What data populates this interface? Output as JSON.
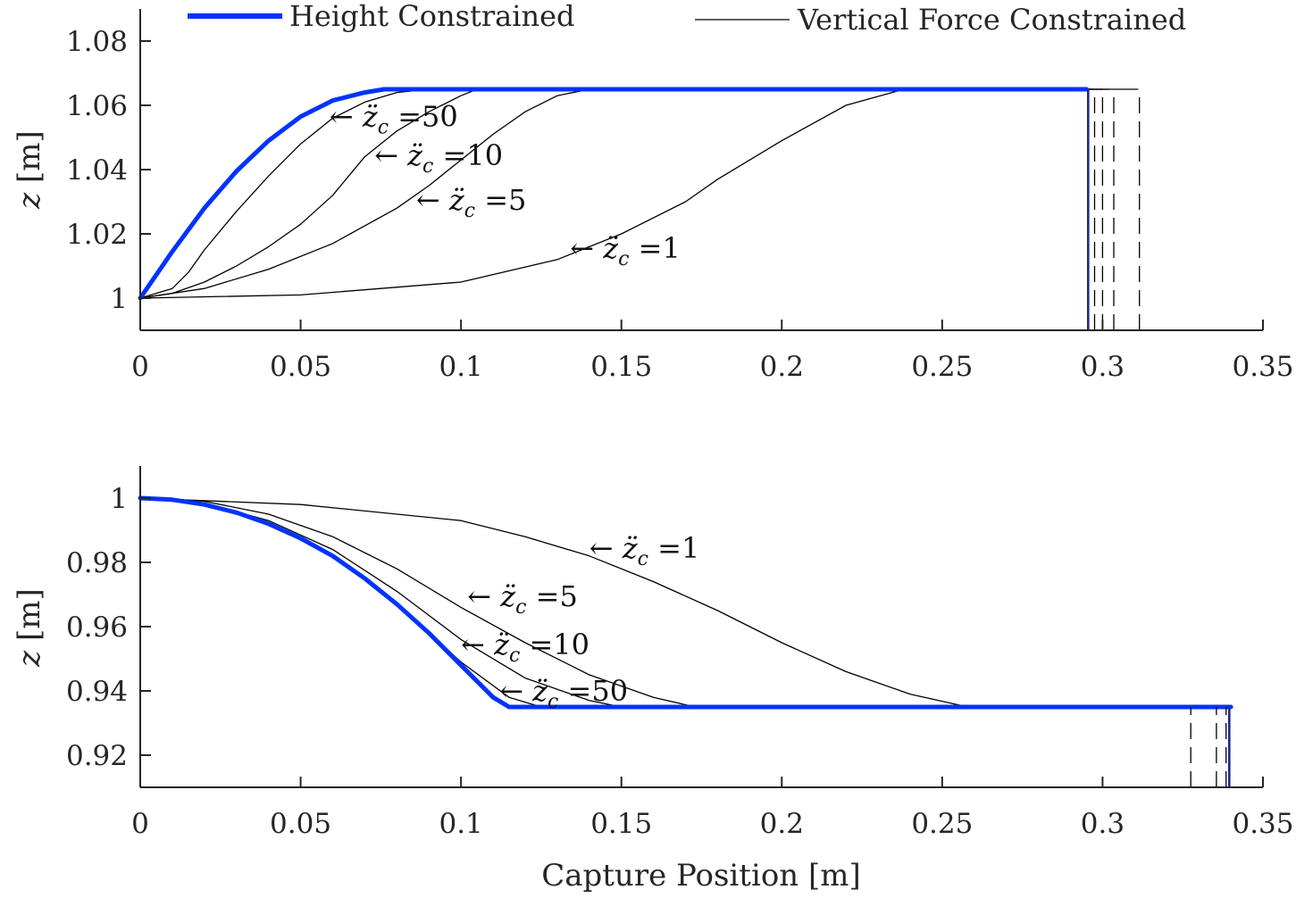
{
  "legend": {
    "height_label": "Height Constrained",
    "force_label": "Vertical Force Constrained",
    "placement": "top",
    "height_color": "#0033ff",
    "force_color": "#000000"
  },
  "chart_data": [
    {
      "type": "line",
      "panel": "top",
      "xlabel": "",
      "ylabel_var": "z",
      "ylabel_unit": "[m]",
      "xlim": [
        0,
        0.35
      ],
      "ylim": [
        0.99,
        1.09
      ],
      "xticks": [
        0,
        0.05,
        0.1,
        0.15,
        0.2,
        0.25,
        0.3,
        0.35
      ],
      "xtick_labels": [
        "0",
        "0.05",
        "0.1",
        "0.15",
        "0.2",
        "0.25",
        "0.3",
        "0.35"
      ],
      "yticks": [
        1.0,
        1.02,
        1.04,
        1.06,
        1.08
      ],
      "ytick_labels": [
        "1",
        "1.02",
        "1.04",
        "1.06",
        "1.08"
      ],
      "grid": false,
      "series": [
        {
          "kind": "height",
          "color": "#0033ff",
          "x": [
            0,
            0.01,
            0.02,
            0.03,
            0.04,
            0.05,
            0.06,
            0.07,
            0.076,
            0.1,
            0.15,
            0.2,
            0.25,
            0.295
          ],
          "y": [
            1.0,
            1.0145,
            1.028,
            1.0395,
            1.049,
            1.0565,
            1.0615,
            1.064,
            1.065,
            1.065,
            1.065,
            1.065,
            1.065,
            1.065
          ]
        },
        {
          "kind": "force",
          "color": "#000000",
          "x": [
            0,
            0.01,
            0.015,
            0.02,
            0.03,
            0.04,
            0.05,
            0.06,
            0.07,
            0.08,
            0.09,
            0.1,
            0.11,
            0.2,
            0.25,
            0.297
          ],
          "y": [
            1.0,
            1.003,
            1.008,
            1.015,
            1.027,
            1.038,
            1.048,
            1.056,
            1.061,
            1.064,
            1.065,
            1.065,
            1.065,
            1.065,
            1.065,
            1.065
          ]
        },
        {
          "kind": "force",
          "color": "#000000",
          "x": [
            0,
            0.01,
            0.02,
            0.03,
            0.04,
            0.05,
            0.06,
            0.065,
            0.07,
            0.08,
            0.09,
            0.1,
            0.105,
            0.15,
            0.2,
            0.25,
            0.3
          ],
          "y": [
            1.0,
            1.0015,
            1.005,
            1.01,
            1.016,
            1.023,
            1.032,
            1.038,
            1.044,
            1.052,
            1.058,
            1.063,
            1.065,
            1.065,
            1.065,
            1.065,
            1.065
          ]
        },
        {
          "kind": "force",
          "color": "#000000",
          "x": [
            0,
            0.02,
            0.04,
            0.06,
            0.08,
            0.09,
            0.1,
            0.11,
            0.12,
            0.13,
            0.14,
            0.2,
            0.25,
            0.302
          ],
          "y": [
            1.0,
            1.003,
            1.009,
            1.017,
            1.028,
            1.035,
            1.043,
            1.051,
            1.058,
            1.063,
            1.065,
            1.065,
            1.065,
            1.065
          ]
        },
        {
          "kind": "force",
          "color": "#000000",
          "x": [
            0,
            0.05,
            0.1,
            0.13,
            0.15,
            0.17,
            0.18,
            0.2,
            0.22,
            0.238,
            0.26,
            0.311
          ],
          "y": [
            1.0,
            1.001,
            1.005,
            1.012,
            1.02,
            1.03,
            1.037,
            1.049,
            1.06,
            1.065,
            1.065,
            1.065
          ]
        }
      ],
      "vlines": [
        {
          "kind": "height",
          "x": 0.2955,
          "style": "solid",
          "y_from": 0.99,
          "y_to": 1.065
        },
        {
          "kind": "force",
          "x": 0.2975,
          "style": "dashed",
          "y_from": 0.99,
          "y_to": 1.065
        },
        {
          "kind": "force",
          "x": 0.3,
          "style": "dashed",
          "y_from": 0.99,
          "y_to": 1.065
        },
        {
          "kind": "force",
          "x": 0.3035,
          "style": "dashed",
          "y_from": 0.99,
          "y_to": 1.065
        },
        {
          "kind": "force",
          "x": 0.3115,
          "style": "dashed",
          "y_from": 0.99,
          "y_to": 1.065
        }
      ],
      "annotations": [
        {
          "x": 0.059,
          "y": 1.0565,
          "prefix": "← ",
          "var": "z̈",
          "sub": "c",
          "value": " =50"
        },
        {
          "x": 0.073,
          "y": 1.0445,
          "prefix": "← ",
          "var": "z̈",
          "sub": "c",
          "value": " =10"
        },
        {
          "x": 0.086,
          "y": 1.0305,
          "prefix": "← ",
          "var": "z̈",
          "sub": "c",
          "value": " =5"
        },
        {
          "x": 0.134,
          "y": 1.0155,
          "prefix": "← ",
          "var": "z̈",
          "sub": "c",
          "value": " =1"
        }
      ]
    },
    {
      "type": "line",
      "panel": "bottom",
      "xlabel": "Capture Position [m]",
      "ylabel_var": "z",
      "ylabel_unit": "[m]",
      "xlim": [
        0,
        0.35
      ],
      "ylim": [
        0.91,
        1.01
      ],
      "xticks": [
        0,
        0.05,
        0.1,
        0.15,
        0.2,
        0.25,
        0.3,
        0.35
      ],
      "xtick_labels": [
        "0",
        "0.05",
        "0.1",
        "0.15",
        "0.2",
        "0.25",
        "0.3",
        "0.35"
      ],
      "yticks": [
        0.92,
        0.94,
        0.96,
        0.98,
        1.0
      ],
      "ytick_labels": [
        "0.92",
        "0.94",
        "0.96",
        "0.98",
        "1"
      ],
      "grid": false,
      "series": [
        {
          "kind": "force",
          "color": "#000000",
          "x": [
            0,
            0.05,
            0.1,
            0.12,
            0.14,
            0.16,
            0.18,
            0.2,
            0.22,
            0.24,
            0.258,
            0.3,
            0.338
          ],
          "y": [
            1.0,
            0.998,
            0.993,
            0.988,
            0.982,
            0.974,
            0.965,
            0.955,
            0.946,
            0.939,
            0.935,
            0.935,
            0.935
          ]
        },
        {
          "kind": "force",
          "color": "#000000",
          "x": [
            0,
            0.02,
            0.04,
            0.06,
            0.08,
            0.1,
            0.12,
            0.14,
            0.16,
            0.173,
            0.2,
            0.25,
            0.3,
            0.336
          ],
          "y": [
            1.0,
            0.999,
            0.995,
            0.988,
            0.978,
            0.966,
            0.955,
            0.945,
            0.938,
            0.935,
            0.935,
            0.935,
            0.935,
            0.935
          ]
        },
        {
          "kind": "force",
          "color": "#000000",
          "x": [
            0,
            0.02,
            0.04,
            0.06,
            0.08,
            0.1,
            0.12,
            0.14,
            0.15,
            0.2,
            0.25,
            0.3,
            0.336
          ],
          "y": [
            1.0,
            0.9985,
            0.993,
            0.984,
            0.971,
            0.956,
            0.944,
            0.937,
            0.935,
            0.935,
            0.935,
            0.935,
            0.935
          ]
        },
        {
          "kind": "force",
          "color": "#000000",
          "x": [
            0,
            0.02,
            0.04,
            0.06,
            0.08,
            0.1,
            0.115,
            0.125,
            0.135,
            0.2,
            0.25,
            0.3,
            0.328
          ],
          "y": [
            1.0,
            0.998,
            0.992,
            0.982,
            0.967,
            0.949,
            0.938,
            0.935,
            0.935,
            0.935,
            0.935,
            0.935,
            0.935
          ]
        },
        {
          "kind": "height",
          "color": "#0033ff",
          "x": [
            0,
            0.01,
            0.02,
            0.03,
            0.04,
            0.05,
            0.06,
            0.07,
            0.08,
            0.09,
            0.1,
            0.11,
            0.115,
            0.15,
            0.2,
            0.25,
            0.3,
            0.34
          ],
          "y": [
            1.0,
            0.9995,
            0.998,
            0.9955,
            0.992,
            0.9875,
            0.982,
            0.975,
            0.967,
            0.958,
            0.948,
            0.938,
            0.935,
            0.935,
            0.935,
            0.935,
            0.935,
            0.935
          ]
        }
      ],
      "vlines": [
        {
          "kind": "force",
          "x": 0.3275,
          "style": "dashed",
          "y_from": 0.91,
          "y_to": 0.935
        },
        {
          "kind": "force",
          "x": 0.3355,
          "style": "dashed",
          "y_from": 0.91,
          "y_to": 0.935
        },
        {
          "kind": "force",
          "x": 0.3385,
          "style": "dashed",
          "y_from": 0.91,
          "y_to": 0.935
        },
        {
          "kind": "height",
          "x": 0.3395,
          "style": "solid",
          "y_from": 0.91,
          "y_to": 0.935
        }
      ],
      "annotations": [
        {
          "x": 0.14,
          "y": 0.9845,
          "prefix": "← ",
          "var": "z̈",
          "sub": "c",
          "value": " =1"
        },
        {
          "x": 0.102,
          "y": 0.9695,
          "prefix": "← ",
          "var": "z̈",
          "sub": "c",
          "value": " =5"
        },
        {
          "x": 0.1,
          "y": 0.9545,
          "prefix": "← ",
          "var": "z̈",
          "sub": "c",
          "value": " =10"
        },
        {
          "x": 0.112,
          "y": 0.94,
          "prefix": "← ",
          "var": "z̈",
          "sub": "c",
          "value": " =50"
        }
      ]
    }
  ]
}
